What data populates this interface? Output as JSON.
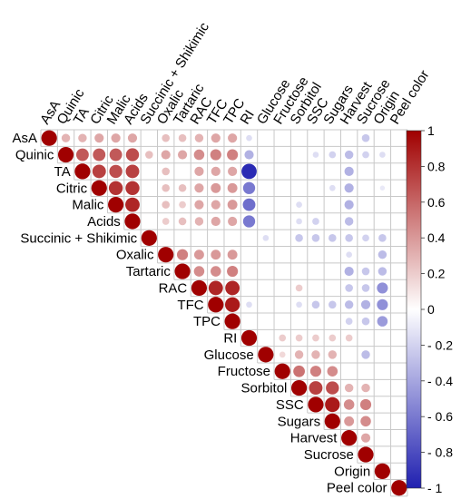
{
  "chart_data": {
    "type": "heatmap",
    "subtype": "correlation-circle-upper-triangle",
    "variables": [
      "AsA",
      "Quinic",
      "TA",
      "Citric",
      "Malic",
      "Acids",
      "Succinic + Shikimic",
      "Oxalic",
      "Tartaric",
      "RAC",
      "TFC",
      "TPC",
      "RI",
      "Glucose",
      "Fructose",
      "Sorbitol",
      "SSC",
      "Sugars",
      "Harvest",
      "Sucrose",
      "Origin",
      "Peel color"
    ],
    "correlations": [
      [
        1.0,
        0.3,
        0.3,
        0.35,
        0.35,
        0.35,
        0,
        0.25,
        0.25,
        0.3,
        0.35,
        0.35,
        -0.15,
        0,
        0,
        0,
        0,
        0,
        0,
        -0.25,
        0,
        0
      ],
      [
        null,
        1.0,
        0.65,
        0.65,
        0.65,
        0.7,
        0.25,
        0.35,
        0.35,
        0.45,
        0.5,
        0.5,
        -0.35,
        0,
        0,
        0,
        -0.15,
        -0.2,
        -0.3,
        -0.2,
        -0.15,
        0
      ],
      [
        null,
        null,
        1.0,
        0.75,
        0.7,
        0.75,
        0,
        0.25,
        0,
        0.35,
        0.35,
        0.35,
        -0.95,
        0,
        0,
        0,
        0,
        0,
        -0.35,
        0,
        0,
        0
      ],
      [
        null,
        null,
        null,
        1.0,
        0.8,
        0.8,
        0,
        0.25,
        0.25,
        0.35,
        0.4,
        0.4,
        -0.6,
        0,
        0,
        0,
        0,
        -0.15,
        -0.35,
        0,
        -0.1,
        0
      ],
      [
        null,
        null,
        null,
        null,
        1.0,
        0.85,
        0,
        0.25,
        0.2,
        0.35,
        0.35,
        0.4,
        -0.65,
        0,
        0,
        -0.15,
        0,
        0,
        -0.35,
        0,
        0,
        0
      ],
      [
        null,
        null,
        null,
        null,
        null,
        1.0,
        0,
        0.2,
        0.25,
        0.3,
        0.35,
        0.35,
        -0.6,
        0,
        0,
        -0.15,
        -0.2,
        0,
        -0.3,
        0,
        0,
        0
      ],
      [
        null,
        null,
        null,
        null,
        null,
        null,
        1.0,
        0,
        0,
        0,
        0,
        0,
        0,
        -0.15,
        0,
        -0.25,
        -0.25,
        -0.25,
        -0.25,
        -0.2,
        -0.25,
        0
      ],
      [
        null,
        null,
        null,
        null,
        null,
        null,
        null,
        1.0,
        0.5,
        0.4,
        0.4,
        0.4,
        0,
        0,
        0,
        0,
        0,
        0,
        -0.15,
        0,
        -0.3,
        0
      ],
      [
        null,
        null,
        null,
        null,
        null,
        null,
        null,
        null,
        1.0,
        0.45,
        0.45,
        0.5,
        0,
        0,
        0,
        0,
        0,
        0,
        -0.35,
        -0.25,
        -0.3,
        0
      ],
      [
        null,
        null,
        null,
        null,
        null,
        null,
        null,
        null,
        null,
        1.0,
        0.85,
        0.85,
        0,
        0,
        0,
        0.2,
        0,
        0,
        -0.25,
        -0.25,
        -0.5,
        0
      ],
      [
        null,
        null,
        null,
        null,
        null,
        null,
        null,
        null,
        null,
        null,
        1.0,
        0.9,
        -0.15,
        0,
        0,
        -0.15,
        -0.25,
        -0.25,
        -0.3,
        -0.35,
        -0.5,
        0
      ],
      [
        null,
        null,
        null,
        null,
        null,
        null,
        null,
        null,
        null,
        null,
        null,
        1.0,
        0,
        0,
        0,
        0,
        0,
        0,
        -0.2,
        -0.25,
        -0.45,
        0
      ],
      [
        null,
        null,
        null,
        null,
        null,
        null,
        null,
        null,
        null,
        null,
        null,
        null,
        1.0,
        0,
        0.2,
        0.2,
        0.2,
        0.2,
        0.2,
        0,
        0,
        0
      ],
      [
        null,
        null,
        null,
        null,
        null,
        null,
        null,
        null,
        null,
        null,
        null,
        null,
        null,
        1.0,
        0.15,
        0.3,
        0.3,
        0.3,
        0,
        -0.3,
        0,
        0
      ],
      [
        null,
        null,
        null,
        null,
        null,
        null,
        null,
        null,
        null,
        null,
        null,
        null,
        null,
        null,
        1.0,
        0.55,
        0.5,
        0.45,
        0,
        0,
        0,
        0
      ],
      [
        null,
        null,
        null,
        null,
        null,
        null,
        null,
        null,
        null,
        null,
        null,
        null,
        null,
        null,
        null,
        1.0,
        0.75,
        0.7,
        0.3,
        0.3,
        0,
        0
      ],
      [
        null,
        null,
        null,
        null,
        null,
        null,
        null,
        null,
        null,
        null,
        null,
        null,
        null,
        null,
        null,
        null,
        1.0,
        0.9,
        0.45,
        0.5,
        0,
        0
      ],
      [
        null,
        null,
        null,
        null,
        null,
        null,
        null,
        null,
        null,
        null,
        null,
        null,
        null,
        null,
        null,
        null,
        null,
        1.0,
        0.4,
        0.45,
        0,
        0
      ],
      [
        null,
        null,
        null,
        null,
        null,
        null,
        null,
        null,
        null,
        null,
        null,
        null,
        null,
        null,
        null,
        null,
        null,
        null,
        1.0,
        0.35,
        0,
        0
      ],
      [
        null,
        null,
        null,
        null,
        null,
        null,
        null,
        null,
        null,
        null,
        null,
        null,
        null,
        null,
        null,
        null,
        null,
        null,
        null,
        1.0,
        0,
        0
      ],
      [
        null,
        null,
        null,
        null,
        null,
        null,
        null,
        null,
        null,
        null,
        null,
        null,
        null,
        null,
        null,
        null,
        null,
        null,
        null,
        null,
        1.0,
        0
      ],
      [
        null,
        null,
        null,
        null,
        null,
        null,
        null,
        null,
        null,
        null,
        null,
        null,
        null,
        null,
        null,
        null,
        null,
        null,
        null,
        null,
        null,
        1.0
      ]
    ],
    "color_scale": {
      "min": -1,
      "max": 1,
      "negative_color": "#2020b0",
      "neutral_color": "#ffffff",
      "positive_color": "#a00000"
    },
    "legend": {
      "placement": "right",
      "tick_labels": [
        "1",
        "0.8",
        "0.6",
        "0.4",
        "0.2",
        "0",
        "- 0.2",
        "- 0.4",
        "- 0.6",
        "- 0.8",
        "- 1"
      ],
      "tick_values": [
        1,
        0.8,
        0.6,
        0.4,
        0.2,
        0,
        -0.2,
        -0.4,
        -0.6,
        -0.8,
        -1
      ]
    },
    "grid": true
  }
}
